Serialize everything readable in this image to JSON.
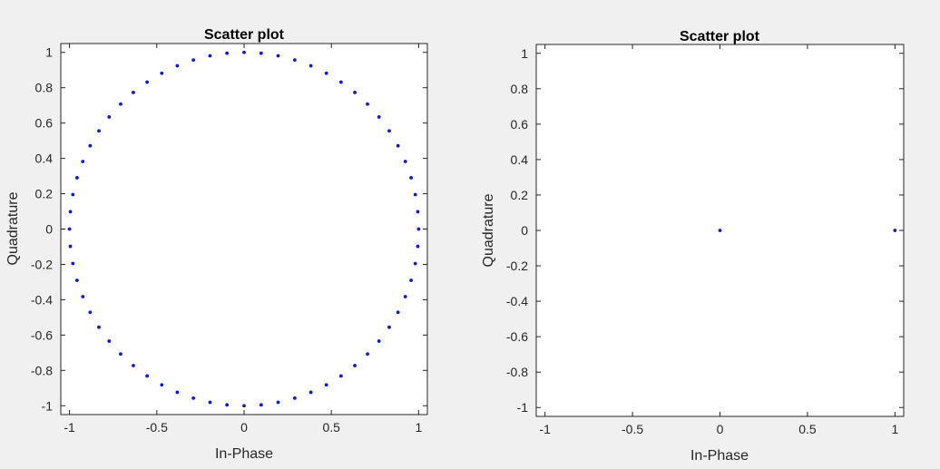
{
  "colors": {
    "marker": "#1414e0",
    "axis": "#262626",
    "plot_bg": "#ffffff",
    "window_bg": "#f0f0f0"
  },
  "chart_data": [
    {
      "type": "scatter",
      "title": "Scatter plot",
      "xlabel": "In-Phase",
      "ylabel": "Quadrature",
      "xlim": [
        -1.05,
        1.05
      ],
      "ylim": [
        -1.05,
        1.05
      ],
      "xticks": [
        -1,
        -0.5,
        0,
        0.5,
        1
      ],
      "xtick_labels": [
        "-1",
        "-0.5",
        "0",
        "0.5",
        "1"
      ],
      "yticks": [
        1,
        0.8,
        0.6,
        0.4,
        0.2,
        0,
        -0.2,
        -0.4,
        -0.6,
        -0.8,
        -1
      ],
      "ytick_labels": [
        "1",
        "0.8",
        "0.6",
        "0.4",
        "0.2",
        "0",
        "-0.2",
        "-0.4",
        "-0.6",
        "-0.8",
        "-1"
      ],
      "grid": false,
      "points": {
        "x": [
          1,
          0.9952,
          0.9808,
          0.9569,
          0.9239,
          0.8819,
          0.8315,
          0.773,
          0.7071,
          0.6344,
          0.5556,
          0.4714,
          0.3827,
          0.2903,
          0.1951,
          0.098,
          0,
          -0.098,
          -0.1951,
          -0.2903,
          -0.3827,
          -0.4714,
          -0.5556,
          -0.6344,
          -0.7071,
          -0.773,
          -0.8315,
          -0.8819,
          -0.9239,
          -0.9569,
          -0.9808,
          -0.9952,
          -1,
          -0.9952,
          -0.9808,
          -0.9569,
          -0.9239,
          -0.8819,
          -0.8315,
          -0.773,
          -0.7071,
          -0.6344,
          -0.5556,
          -0.4714,
          -0.3827,
          -0.2903,
          -0.1951,
          -0.098,
          0,
          0.098,
          0.1951,
          0.2903,
          0.3827,
          0.4714,
          0.5556,
          0.6344,
          0.7071,
          0.773,
          0.8315,
          0.8819,
          0.9239,
          0.9569,
          0.9808,
          0.9952
        ],
        "y": [
          0,
          0.098,
          0.1951,
          0.2903,
          0.3827,
          0.4714,
          0.5556,
          0.6344,
          0.7071,
          0.773,
          0.8315,
          0.8819,
          0.9239,
          0.9569,
          0.9808,
          0.9952,
          1,
          0.9952,
          0.9808,
          0.9569,
          0.9239,
          0.8819,
          0.8315,
          0.773,
          0.7071,
          0.6344,
          0.5556,
          0.4714,
          0.3827,
          0.2903,
          0.1951,
          0.098,
          0,
          -0.098,
          -0.1951,
          -0.2903,
          -0.3827,
          -0.4714,
          -0.5556,
          -0.6344,
          -0.7071,
          -0.773,
          -0.8315,
          -0.8819,
          -0.9239,
          -0.9569,
          -0.9808,
          -0.9952,
          -1,
          -0.9952,
          -0.9808,
          -0.9569,
          -0.9239,
          -0.8819,
          -0.8315,
          -0.773,
          -0.7071,
          -0.6344,
          -0.5556,
          -0.4714,
          -0.3827,
          -0.2903,
          -0.1951,
          -0.098
        ]
      }
    },
    {
      "type": "scatter",
      "title": "Scatter plot",
      "xlabel": "In-Phase",
      "ylabel": "Quadrature",
      "xlim": [
        -1.05,
        1.05
      ],
      "ylim": [
        -1.05,
        1.05
      ],
      "xticks": [
        -1,
        -0.5,
        0,
        0.5,
        1
      ],
      "xtick_labels": [
        "-1",
        "-0.5",
        "0",
        "0.5",
        "1"
      ],
      "yticks": [
        1,
        0.8,
        0.6,
        0.4,
        0.2,
        0,
        -0.2,
        -0.4,
        -0.6,
        -0.8,
        -1
      ],
      "ytick_labels": [
        "1",
        "0.8",
        "0.6",
        "0.4",
        "0.2",
        "0",
        "-0.2",
        "-0.4",
        "-0.6",
        "-0.8",
        "-1"
      ],
      "grid": false,
      "points": {
        "x": [
          0,
          1
        ],
        "y": [
          0,
          0
        ]
      }
    }
  ]
}
